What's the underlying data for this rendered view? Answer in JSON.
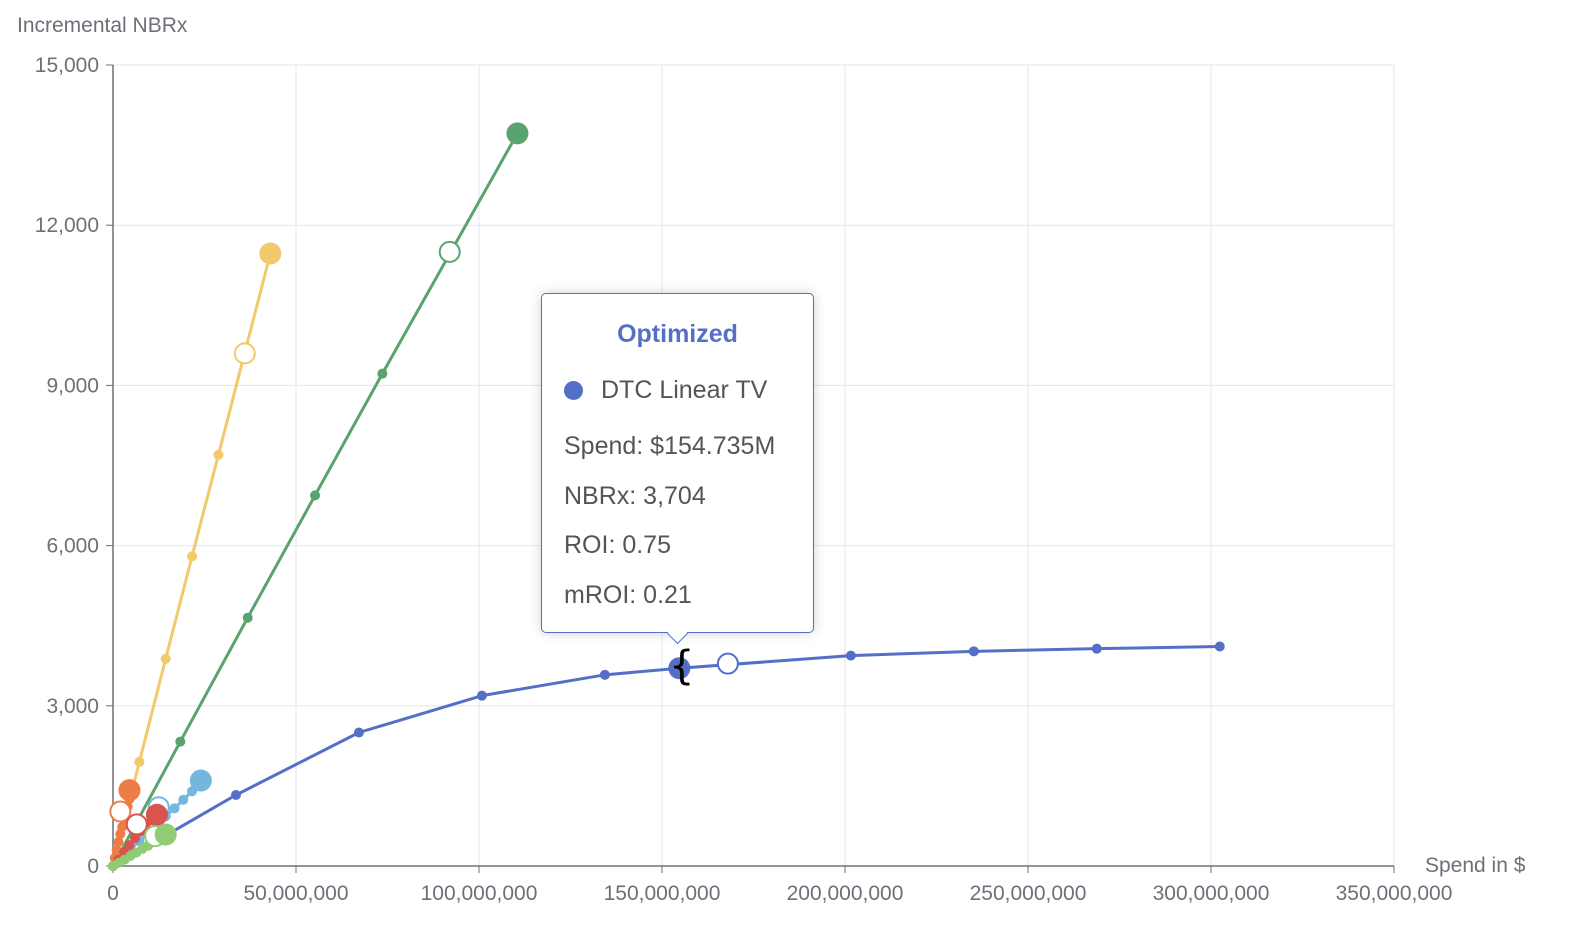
{
  "chart_data": {
    "type": "line",
    "ylabel": "Incremental NBRx",
    "xlabel": "Spend in $",
    "xlim": [
      0,
      350000000
    ],
    "ylim": [
      0,
      15000
    ],
    "x_ticks": [
      0,
      50000000,
      100000000,
      150000000,
      200000000,
      250000000,
      300000000,
      350000000
    ],
    "x_tick_labels": [
      "0",
      "50,000,000",
      "100,000,000",
      "150,000,000",
      "200,000,000",
      "250,000,000",
      "300,000,000",
      "350,000,000"
    ],
    "y_ticks": [
      0,
      3000,
      6000,
      9000,
      12000,
      15000
    ],
    "y_tick_labels": [
      "0",
      "3,000",
      "6,000",
      "9,000",
      "12,000",
      "15,000"
    ],
    "grid": true,
    "series": [
      {
        "color": "#5470c6",
        "points": [
          [
            0,
            0
          ],
          [
            33600000,
            1330
          ],
          [
            67200000,
            2500
          ],
          [
            100800000,
            3190
          ],
          [
            134400000,
            3580
          ],
          [
            154735000,
            3704
          ],
          [
            201600000,
            3940
          ],
          [
            235200000,
            4020
          ],
          [
            268800000,
            4070
          ],
          [
            302400000,
            4110
          ]
        ],
        "filled": [
          154735000,
          3704
        ],
        "hollow": [
          168000000,
          3790
        ]
      },
      {
        "color": "#59a36f",
        "points": [
          [
            0,
            0
          ],
          [
            18400000,
            2330
          ],
          [
            36800000,
            4650
          ],
          [
            55200000,
            6940
          ],
          [
            73600000,
            9220
          ],
          [
            110500000,
            13720
          ]
        ],
        "filled": [
          110500000,
          13720
        ],
        "hollow": [
          92000000,
          11500
        ]
      },
      {
        "color": "#f2c96d",
        "points": [
          [
            0,
            0
          ],
          [
            7200000,
            1950
          ],
          [
            14400000,
            3880
          ],
          [
            21600000,
            5800
          ],
          [
            28800000,
            7700
          ],
          [
            43000000,
            11470
          ]
        ],
        "filled": [
          43000000,
          11470
        ],
        "hollow": [
          36000000,
          9600
        ]
      },
      {
        "color": "#73b6de",
        "points": [
          [
            0,
            0
          ],
          [
            2400000,
            160
          ],
          [
            4800000,
            310
          ],
          [
            7200000,
            470
          ],
          [
            9600000,
            620
          ],
          [
            12000000,
            780
          ],
          [
            14400000,
            930
          ],
          [
            16800000,
            1080
          ],
          [
            19200000,
            1240
          ],
          [
            21600000,
            1400
          ],
          [
            24000000,
            1600
          ]
        ],
        "filled": [
          24000000,
          1600
        ],
        "hollow": [
          12500000,
          1100
        ]
      },
      {
        "color": "#ed7d45",
        "points": [
          [
            0,
            0
          ],
          [
            500000,
            150
          ],
          [
            1000000,
            300
          ],
          [
            1500000,
            450
          ],
          [
            2000000,
            600
          ],
          [
            2500000,
            730
          ],
          [
            3000000,
            860
          ],
          [
            3500000,
            990
          ],
          [
            4000000,
            1110
          ],
          [
            4500000,
            1250
          ],
          [
            4500000,
            1420
          ]
        ],
        "filled": [
          4500000,
          1420
        ],
        "hollow": [
          2000000,
          1020
        ]
      },
      {
        "color": "#d9534f",
        "points": [
          [
            0,
            0
          ],
          [
            1500000,
            120
          ],
          [
            3000000,
            260
          ],
          [
            4500000,
            390
          ],
          [
            6000000,
            520
          ],
          [
            7500000,
            650
          ],
          [
            9000000,
            780
          ],
          [
            10500000,
            860
          ],
          [
            12000000,
            950
          ],
          [
            13000000,
            1000
          ]
        ],
        "filled": [
          12000000,
          960
        ],
        "hollow": [
          6500000,
          780
        ]
      },
      {
        "color": "#91cc75",
        "points": [
          [
            0,
            0
          ],
          [
            1600000,
            60
          ],
          [
            3200000,
            120
          ],
          [
            4800000,
            190
          ],
          [
            6400000,
            250
          ],
          [
            8000000,
            320
          ],
          [
            9600000,
            380
          ],
          [
            11200000,
            450
          ],
          [
            12800000,
            510
          ],
          [
            14400000,
            580
          ]
        ],
        "filled": [
          14400000,
          590
        ],
        "hollow": [
          11500000,
          560
        ]
      }
    ]
  },
  "tooltip": {
    "title": "Optimized",
    "series_name": "DTC Linear TV",
    "spend": "Spend: $154.735M",
    "nbrx": "NBRx: 3,704",
    "roi": "ROI: 0.75",
    "mroi": "mROI: 0.21"
  },
  "cursor_glyph": "{"
}
